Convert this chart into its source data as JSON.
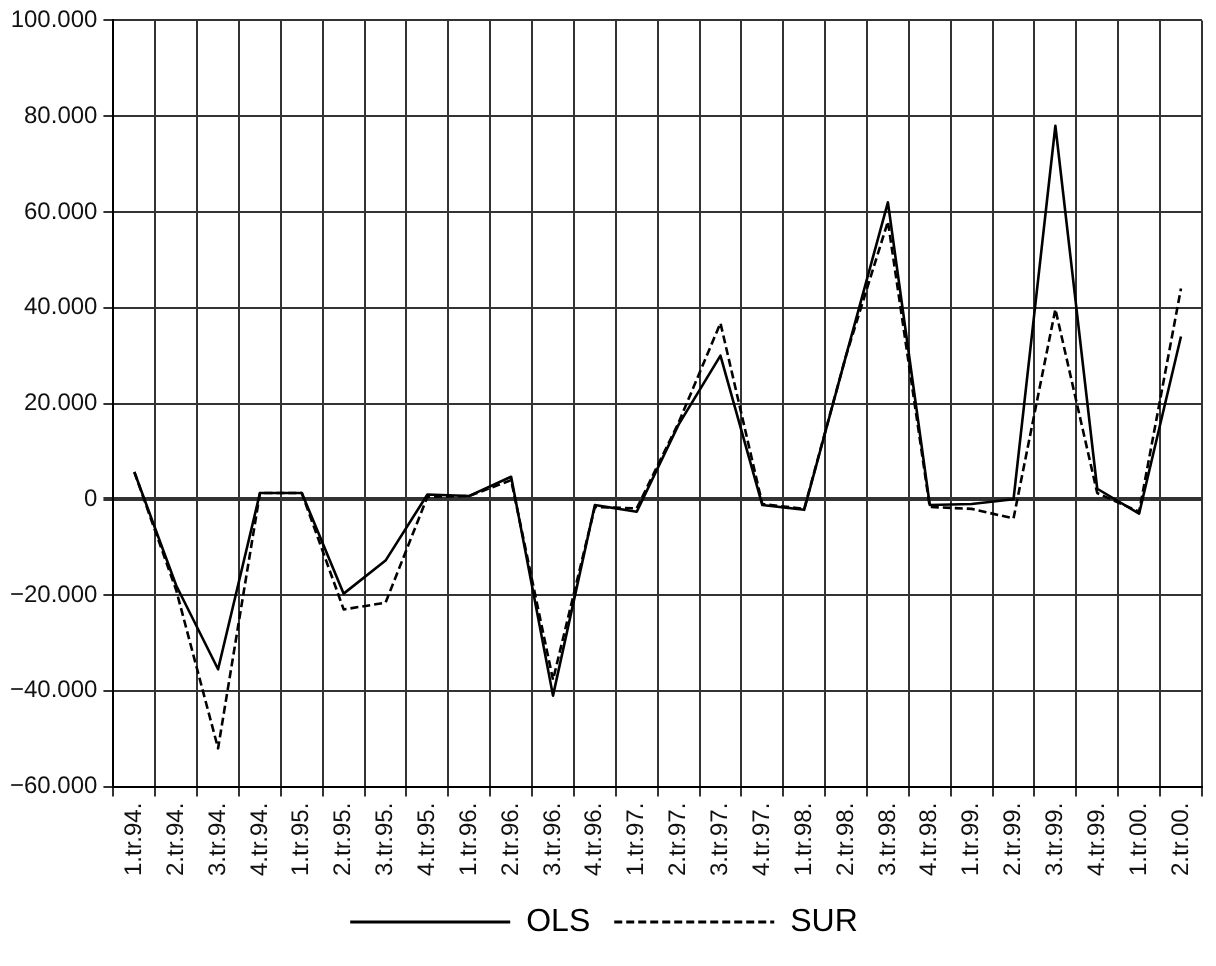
{
  "chart_data": {
    "type": "line",
    "categories": [
      "1.tr.94.",
      "2.tr.94.",
      "3.tr.94.",
      "4.tr.94.",
      "1.tr.95.",
      "2.tr.95.",
      "3.tr.95.",
      "4.tr.95.",
      "1.tr.96.",
      "2.tr.96.",
      "3.tr.96.",
      "4.tr.96.",
      "1.tr.97.",
      "2.tr.97.",
      "3.tr.97.",
      "4.tr.97.",
      "1.tr.98.",
      "2.tr.98.",
      "3.tr.98.",
      "4.tr.98.",
      "1.tr.99.",
      "2.tr.99.",
      "3.tr.99.",
      "4.tr.99.",
      "1.tr.00.",
      "2.tr.00."
    ],
    "series": [
      {
        "name": "OLS",
        "color": "#000000",
        "line_style": "solid",
        "values": [
          5700,
          -18000,
          -35500,
          1300,
          1300,
          -19700,
          -12800,
          1000,
          700,
          4700,
          -41000,
          -1200,
          -2600,
          15600,
          30000,
          -1200,
          -2200,
          30000,
          62000,
          -1200,
          -1000,
          0,
          78000,
          2200,
          -3000,
          34000
        ]
      },
      {
        "name": "SUR",
        "color": "#000000",
        "line_style": "dashed",
        "values": [
          5700,
          -19000,
          -52000,
          1300,
          1300,
          -23000,
          -21600,
          500,
          700,
          4000,
          -37700,
          -1600,
          -1900,
          16000,
          36800,
          -1000,
          -2000,
          30000,
          58000,
          -1600,
          -2000,
          -4000,
          39700,
          1300,
          -2600,
          44000
        ]
      }
    ],
    "ylim": [
      -60000,
      100000
    ],
    "yticks": [
      {
        "value": -60000,
        "label": "−60.000"
      },
      {
        "value": -40000,
        "label": "−40.000"
      },
      {
        "value": -20000,
        "label": "−20.000"
      },
      {
        "value": 0,
        "label": "0"
      },
      {
        "value": 20000,
        "label": "20.000"
      },
      {
        "value": 40000,
        "label": "40.000"
      },
      {
        "value": 60000,
        "label": "60.000"
      },
      {
        "value": 80000,
        "label": "80.000"
      },
      {
        "value": 100000,
        "label": "100.000"
      }
    ],
    "grid": true,
    "legend": "bottom",
    "marker": "none"
  }
}
